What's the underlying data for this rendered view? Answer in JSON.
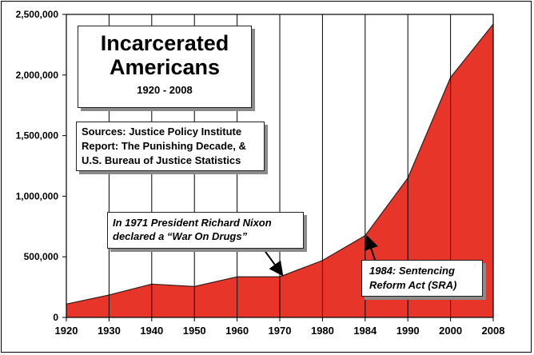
{
  "chart_data": {
    "type": "area",
    "title_lines": [
      "Incarcerated",
      "Americans"
    ],
    "subtitle": "1920 - 2008",
    "sources_lines": [
      "Sources: Justice Policy Institute",
      "Report: The Punishing Decade, &",
      "U.S. Bureau of Justice Statistics"
    ],
    "annotations": [
      {
        "id": "nixon",
        "lines": [
          "In 1971 President Richard Nixon",
          "declared a “War On Drugs”"
        ],
        "points_to": 1970
      },
      {
        "id": "sra",
        "lines": [
          "1984: Sentencing",
          "Reform Act (SRA)"
        ],
        "points_to": 1984
      }
    ],
    "x": [
      1920,
      1930,
      1940,
      1950,
      1960,
      1970,
      1980,
      1984,
      1990,
      2000,
      2008
    ],
    "x_tick_labels": [
      "1920",
      "1930",
      "1940",
      "1950",
      "1960",
      "1970",
      "1980",
      "1984",
      "1990",
      "2000",
      "2008"
    ],
    "y_tick_values": [
      0,
      500000,
      1000000,
      1500000,
      2000000,
      2500000
    ],
    "y_tick_labels": [
      "0",
      "500,000",
      "1,000,000",
      "1,500,000",
      "2,000,000",
      "2,500,000"
    ],
    "series": [
      {
        "values": [
          110000,
          185000,
          275000,
          255000,
          335000,
          335000,
          470000,
          675000,
          1150000,
          1980000,
          2420000
        ]
      }
    ],
    "ylim": [
      0,
      2500000
    ],
    "x_axis": "categorical-evenly-spaced",
    "grid": {
      "vertical": true,
      "horizontal": false
    },
    "legend": "none",
    "colors": {
      "fill": "#e8352a",
      "outline": "#3a1a1a",
      "grid": "#000000",
      "background": "#ffffff"
    }
  }
}
